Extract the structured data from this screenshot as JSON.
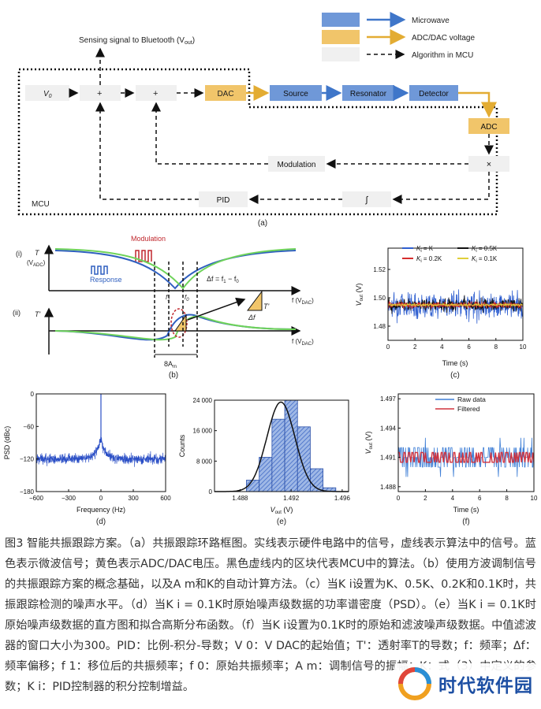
{
  "panel_a": {
    "legend": {
      "microwave": "Microwave",
      "adcdac": "ADC/DAC voltage",
      "algorithm": "Algorithm in MCU"
    },
    "sensing_label": "Sensing signal to Bluetooth (V",
    "sensing_sub": "out",
    "sensing_close": ")",
    "blocks": {
      "v0": "V",
      "v0_sub": "0",
      "plus1": "+",
      "plus2": "+",
      "dac": "DAC",
      "source": "Source",
      "resonator": "Resonator",
      "detector": "Detector",
      "adc": "ADC",
      "modulation": "Modulation",
      "times": "×",
      "pid": "PID",
      "integral": "∫",
      "mcu": "MCU"
    },
    "colors": {
      "microwave": "#3f76c9",
      "adcdac": "#e3ac33",
      "mcu_box": "#f0f0f0",
      "blue_block": "#6f98d8",
      "yellow_block": "#f1c56a"
    },
    "label": "(a)"
  },
  "panel_b": {
    "row1_label": "(i)",
    "row2_label": "(ii)",
    "y1_label": "T",
    "y1_unit": "(V",
    "y1_unit_sub": "ADC",
    "y1_unit_close": ")",
    "y2_label": "T'",
    "modulation": "Modulation",
    "response": "Response",
    "delta_f": "Δf = f",
    "delta_f_sub1": "1",
    "delta_f_mid": " − f",
    "delta_f_sub0": "0",
    "f1": "f",
    "f1_sub": "1",
    "f0": "f",
    "f0_sub": "0",
    "x_label": "f (V",
    "x_sub": "DAC",
    "x_close": ")",
    "tri_num": "T'",
    "tri_den": "Δf",
    "amp": "8A",
    "amp_sub": "m",
    "label": "(b)",
    "colors": {
      "blue": "#2f5fbf",
      "green": "#6fd35a",
      "red": "#c0272d"
    }
  },
  "panel_c": {
    "chart_data": {
      "type": "line",
      "ylabel": "V",
      "ylabel_sub": "out",
      "ylabel_unit": " (V)",
      "xlabel": "Time (s)",
      "xlim": [
        0,
        10
      ],
      "ylim": [
        1.47,
        1.535
      ],
      "xticks": [
        "0",
        "2",
        "4",
        "6",
        "8",
        "10"
      ],
      "yticks": [
        "1.48",
        "1.50",
        "1.52"
      ],
      "series": [
        {
          "name": "K",
          "name_sub": "i",
          "name_eq": " = K",
          "color": "#2f5fd0",
          "center": 1.495,
          "spread": 0.016
        },
        {
          "name": "K",
          "name_sub": "i",
          "name_eq": " = 0.5K",
          "color": "#111111",
          "center": 1.495,
          "spread": 0.008
        },
        {
          "name": "K",
          "name_sub": "i",
          "name_eq": " = 0.2K",
          "color": "#d62e2e",
          "center": 1.495,
          "spread": 0.004
        },
        {
          "name": "K",
          "name_sub": "i",
          "name_eq": " = 0.1K",
          "color": "#e0cf3a",
          "center": 1.495,
          "spread": 0.0015
        }
      ]
    },
    "label": "(c)"
  },
  "panel_d": {
    "chart_data": {
      "type": "line",
      "ylabel": "PSD (dBc)",
      "xlabel": "Frequency (Hz)",
      "xlim": [
        -600,
        600
      ],
      "ylim": [
        -180,
        0
      ],
      "xticks": [
        "−600",
        "−300",
        "0",
        "300",
        "600"
      ],
      "yticks": [
        "0",
        "−60",
        "−120",
        "−180"
      ],
      "noise_floor": -120,
      "peak": 0,
      "color": "#2b4fc6"
    },
    "label": "(d)"
  },
  "panel_e": {
    "chart_data": {
      "type": "bar",
      "ylabel": "Counts",
      "xlabel": "V",
      "xlabel_sub": "out",
      "xlabel_unit": " (V)",
      "xlim": [
        1.486,
        1.4965
      ],
      "ylim": [
        0,
        24000
      ],
      "xticks": [
        "1.488",
        "1.492",
        "1.496"
      ],
      "yticks": [
        "24 000",
        "16 000",
        "8 000",
        "0"
      ],
      "bins": [
        {
          "from": 1.4885,
          "to": 1.4895,
          "count": 3000
        },
        {
          "from": 1.4895,
          "to": 1.4905,
          "count": 9000
        },
        {
          "from": 1.4905,
          "to": 1.4915,
          "count": 19000
        },
        {
          "from": 1.4915,
          "to": 1.4925,
          "count": 24000
        },
        {
          "from": 1.4925,
          "to": 1.4935,
          "count": 17000
        },
        {
          "from": 1.4935,
          "to": 1.4945,
          "count": 6000
        },
        {
          "from": 1.4945,
          "to": 1.4955,
          "count": 1000
        }
      ],
      "gauss_mean": 1.4912,
      "gauss_sigma": 0.0011,
      "gauss_peak": 23500
    },
    "label": "(e)"
  },
  "panel_f": {
    "chart_data": {
      "type": "line",
      "ylabel": "V",
      "ylabel_sub": "out",
      "ylabel_unit": " (V)",
      "xlabel": "Time (s)",
      "xlim": [
        0,
        10
      ],
      "ylim": [
        1.4875,
        1.4975
      ],
      "xticks": [
        "0",
        "2",
        "4",
        "6",
        "8",
        "10"
      ],
      "yticks": [
        "1.497",
        "1.494",
        "1.491",
        "1.488"
      ],
      "series": [
        {
          "name": "Raw data",
          "color": "#3f7fd6",
          "center": 1.491,
          "spread": 0.002
        },
        {
          "name": "Filtered",
          "color": "#d0333f",
          "center": 1.491,
          "spread": 0.0005
        }
      ]
    },
    "label": "(f)"
  },
  "caption": [
    "图3 智能共振跟踪方案。（a）共振跟踪环路框图。实线表示硬件电路中的信号，虚线表示算法中的信号。蓝色表示微波信号；黄色表示ADC/DAC电压。黑色虚线内的区块代表MCU中的算法。（b）使用方波调制信号的共振跟踪方案的概念基础，以及A m和K的自动计算方法。（c）当K i设置为K、0.5K、0.2K和0.1K时，共振跟踪检测的噪声水平。（d）当K i = 0.1K时原始噪声级数据的功率谱密度（PSD）。（e）当K i = 0.1K时原始噪声级数据的直方图和拟合高斯分布函数。（f）当K i设置为0.1K时的原始和滤波噪声级数据。中值滤波器的窗口大小为300。PID：比例-积分-导数；V 0：V DAC的起始值；T'：透射率T的导数；f：频率；Δf：频率偏移；f 1：移位后的共振频率；f 0：原始共振频率；A m：调制信号的振幅；K：式（3）中定义的参数；K i：PID控制器的积分控制增益。"
  ],
  "watermark": {
    "text": "时代软件园"
  }
}
